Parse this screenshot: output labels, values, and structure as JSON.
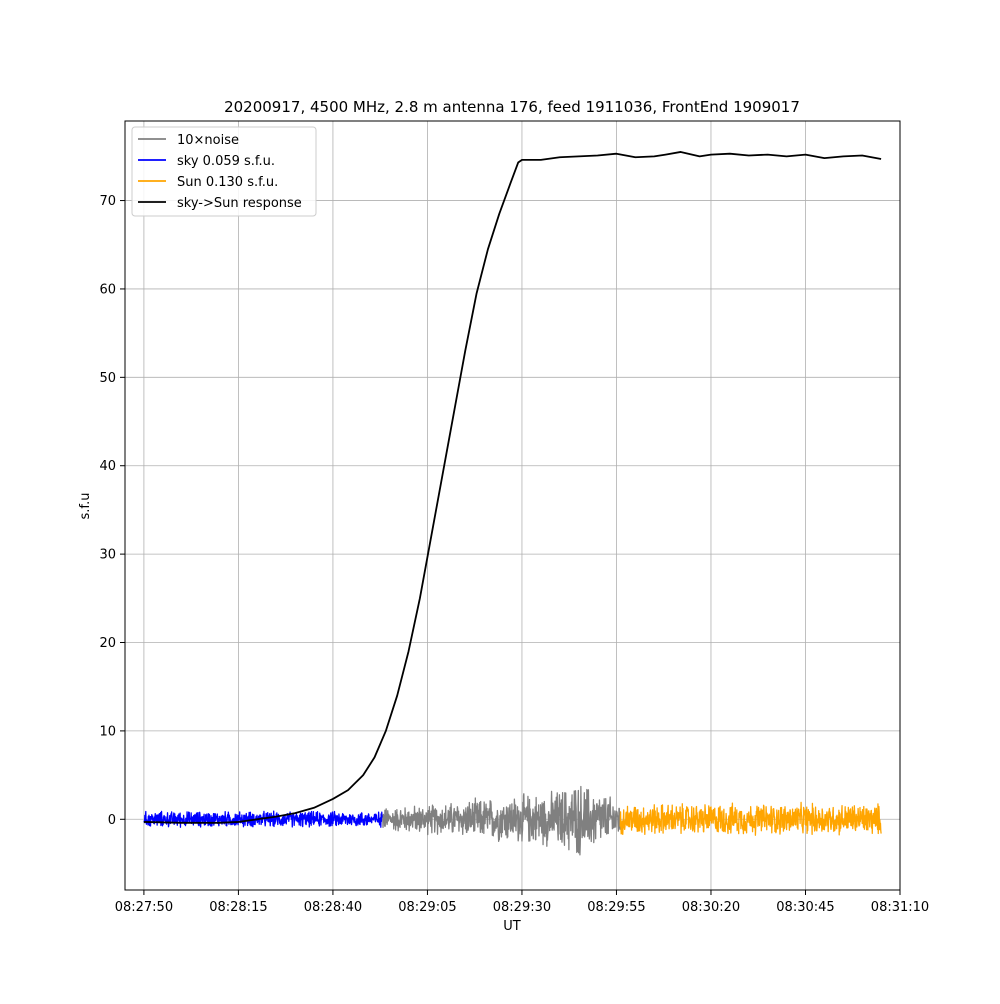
{
  "chart_data": {
    "type": "line",
    "title": "20200917, 4500 MHz, 2.8 m antenna 176, feed 1911036, FrontEnd 1909017",
    "xlabel": "UT",
    "ylabel": "s.f.u",
    "xlim": [
      "08:27:45",
      "08:31:10"
    ],
    "ylim": [
      -8,
      79
    ],
    "x_ticks": [
      "08:27:50",
      "08:28:15",
      "08:28:40",
      "08:29:05",
      "08:29:30",
      "08:29:55",
      "08:30:20",
      "08:30:45",
      "08:31:10"
    ],
    "y_ticks": [
      0,
      10,
      20,
      30,
      40,
      50,
      60,
      70
    ],
    "grid": true,
    "legend_position": "top-left",
    "series": [
      {
        "name": "10×noise",
        "color": "#808080",
        "style": "noise",
        "x_start": "08:28:53",
        "x_end": "08:29:56",
        "envelope": [
          [
            0,
            1.5
          ],
          [
            15,
            2.0
          ],
          [
            30,
            2.8
          ],
          [
            45,
            3.5
          ],
          [
            52,
            4.8
          ],
          [
            63,
            2.3
          ]
        ]
      },
      {
        "name": "sky 0.059 s.f.u.",
        "color": "#0000ff",
        "style": "noise",
        "x_start": "08:27:50",
        "x_end": "08:28:53",
        "envelope": [
          [
            0,
            1.0
          ],
          [
            63,
            1.0
          ]
        ]
      },
      {
        "name": "Sun 0.130 s.f.u.",
        "color": "#ffa500",
        "style": "noise",
        "x_start": "08:29:56",
        "x_end": "08:31:05",
        "envelope": [
          [
            0,
            2.0
          ],
          [
            69,
            2.0
          ]
        ]
      },
      {
        "name": "sky->Sun response",
        "color": "#000000",
        "style": "line",
        "points": [
          [
            "08:27:50",
            -0.3
          ],
          [
            "08:28:00",
            -0.4
          ],
          [
            "08:28:10",
            -0.4
          ],
          [
            "08:28:15",
            -0.3
          ],
          [
            "08:28:20",
            0.0
          ],
          [
            "08:28:25",
            0.3
          ],
          [
            "08:28:30",
            0.7
          ],
          [
            "08:28:35",
            1.3
          ],
          [
            "08:28:40",
            2.3
          ],
          [
            "08:28:44",
            3.3
          ],
          [
            "08:28:48",
            5.0
          ],
          [
            "08:28:51",
            7.0
          ],
          [
            "08:28:54",
            10.0
          ],
          [
            "08:28:57",
            14.0
          ],
          [
            "08:29:00",
            19.0
          ],
          [
            "08:29:03",
            25.0
          ],
          [
            "08:29:06",
            32.0
          ],
          [
            "08:29:09",
            39.0
          ],
          [
            "08:29:12",
            46.0
          ],
          [
            "08:29:15",
            53.0
          ],
          [
            "08:29:18",
            59.5
          ],
          [
            "08:29:21",
            64.5
          ],
          [
            "08:29:24",
            68.5
          ],
          [
            "08:29:27",
            72.0
          ],
          [
            "08:29:29",
            74.3
          ],
          [
            "08:29:30",
            74.6
          ],
          [
            "08:29:35",
            74.6
          ],
          [
            "08:29:40",
            74.9
          ],
          [
            "08:29:45",
            75.0
          ],
          [
            "08:29:50",
            75.1
          ],
          [
            "08:29:55",
            75.3
          ],
          [
            "08:30:00",
            74.9
          ],
          [
            "08:30:05",
            75.0
          ],
          [
            "08:30:08",
            75.2
          ],
          [
            "08:30:12",
            75.5
          ],
          [
            "08:30:17",
            75.0
          ],
          [
            "08:30:20",
            75.2
          ],
          [
            "08:30:25",
            75.3
          ],
          [
            "08:30:30",
            75.1
          ],
          [
            "08:30:35",
            75.2
          ],
          [
            "08:30:40",
            75.0
          ],
          [
            "08:30:45",
            75.2
          ],
          [
            "08:30:50",
            74.8
          ],
          [
            "08:30:55",
            75.0
          ],
          [
            "08:31:00",
            75.1
          ],
          [
            "08:31:05",
            74.7
          ]
        ]
      }
    ]
  }
}
